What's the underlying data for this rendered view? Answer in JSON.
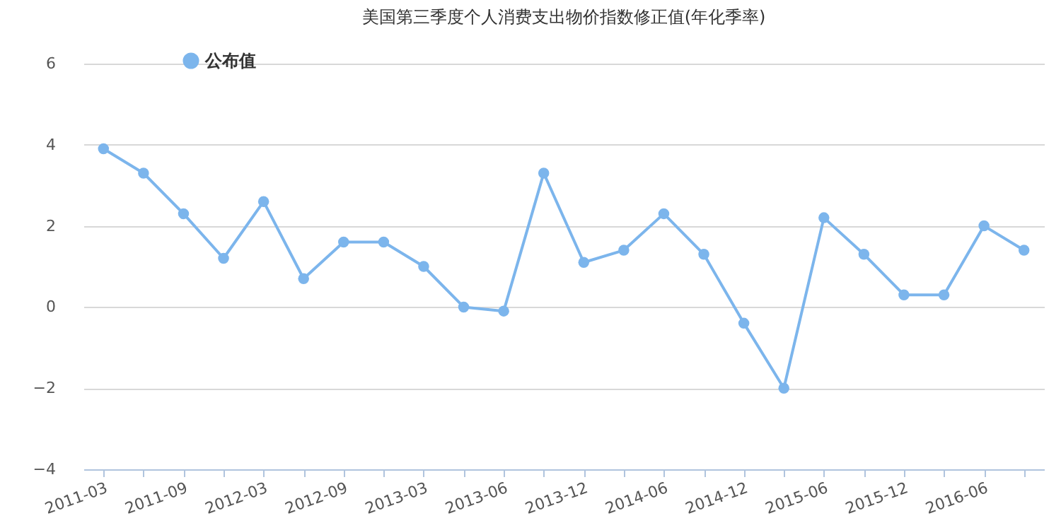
{
  "chart_data": {
    "type": "line",
    "title": "美国第三季度个人消费支出物价指数修正值(年化季率)",
    "categories": [
      "2011-03",
      null,
      "2011-09",
      null,
      "2012-03",
      null,
      "2012-09",
      null,
      "2013-03",
      null,
      "2013-06",
      null,
      "2013-12",
      null,
      "2014-06",
      null,
      "2014-12",
      null,
      "2015-06",
      null,
      "2015-12",
      null,
      "2016-06",
      null
    ],
    "series": [
      {
        "name": "公布值",
        "color": "#7cb5ec",
        "values": [
          3.9,
          3.3,
          2.3,
          1.2,
          2.6,
          0.7,
          1.6,
          1.6,
          1.0,
          0.0,
          -0.1,
          3.3,
          1.1,
          1.4,
          2.3,
          1.3,
          -0.4,
          -2.0,
          2.2,
          1.3,
          0.3,
          0.3,
          2.0,
          1.4
        ]
      }
    ],
    "ylim": [
      -4,
      6
    ],
    "yticks": [
      -4,
      -2,
      0,
      2,
      4,
      6
    ],
    "grid": "y",
    "legend": "top left",
    "marker": "circle",
    "line_style": "solid"
  }
}
